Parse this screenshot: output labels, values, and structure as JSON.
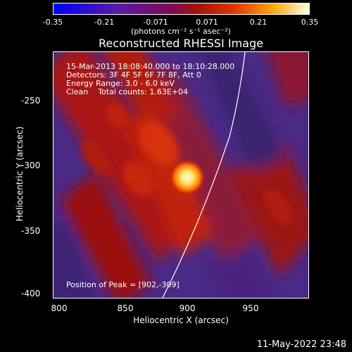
{
  "colorbar": {
    "ticks": [
      "-0.35",
      "-0.21",
      "-0.071",
      "0.071",
      "0.21",
      "0.35"
    ],
    "units": "(photons cm⁻² s⁻¹ asec⁻²)",
    "min": -0.35,
    "max": 0.35
  },
  "title": "Reconstructed RHESSI Image",
  "info": {
    "time_range": "15-Mar-2013 18:08:40.000 to 18:10:28.000",
    "detectors": "Detectors: 3F 4F 5F 6F 7F 8F, Att 0",
    "energy": "Energy Range: 3.0 - 6.0 keV",
    "clean": "Clean    Total counts: 1.63E+04",
    "peak": "Position of Peak = [902,-309]"
  },
  "axes": {
    "xlabel": "Heliocentric X (arcsec)",
    "ylabel": "Heliocentric Y (arcsec)",
    "xticks": [
      "800",
      "850",
      "900",
      "950"
    ],
    "yticks": [
      "-250",
      "-300",
      "-350",
      "-400"
    ],
    "xlim": [
      795,
      990
    ],
    "ylim": [
      -402,
      -213
    ]
  },
  "peak": {
    "x": 902,
    "y": -309
  },
  "datestamp": "11-May-2022 23:48"
}
